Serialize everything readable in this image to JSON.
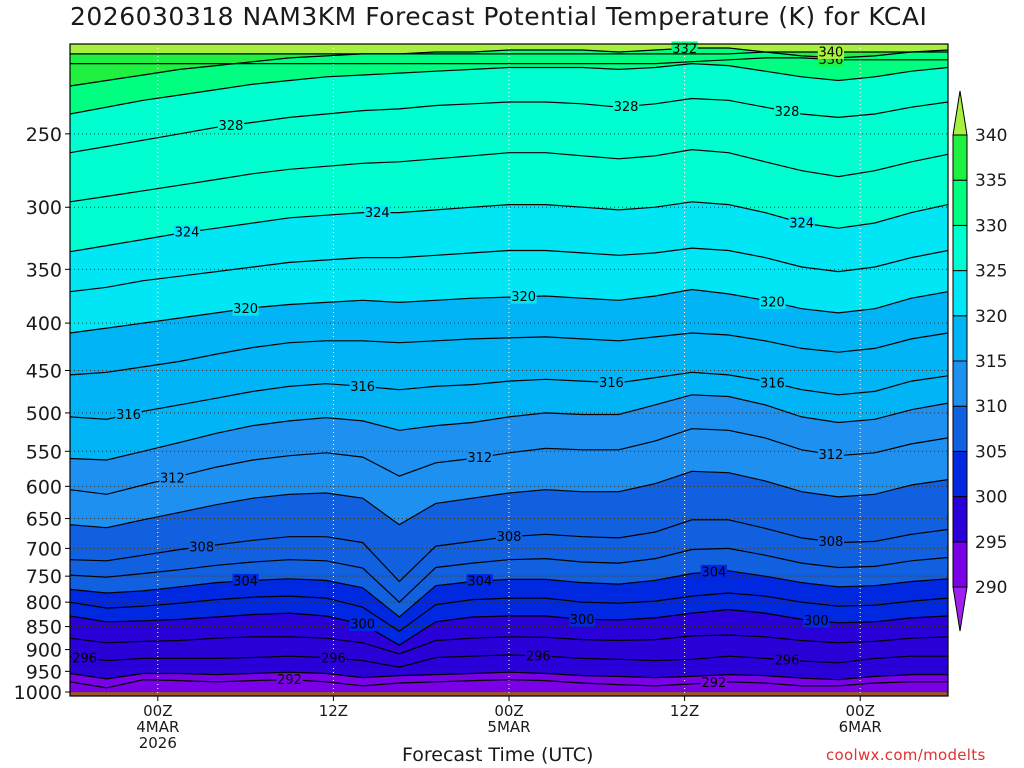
{
  "title": "2026030318 NAM3KM Forecast Potential Temperature (K) for KCAI",
  "credit": "coolwx.com/modelts",
  "chart_data": {
    "type": "heatmap",
    "title": "2026030318 NAM3KM Forecast Potential Temperature (K) for KCAI",
    "xlabel": "Forecast Time (UTC)",
    "ylabel": "",
    "x_ticks": [
      {
        "hour": 6,
        "lines": [
          "00Z",
          "4MAR",
          "2026"
        ]
      },
      {
        "hour": 18,
        "lines": [
          "12Z"
        ]
      },
      {
        "hour": 30,
        "lines": [
          "00Z",
          "5MAR"
        ]
      },
      {
        "hour": 42,
        "lines": [
          "12Z"
        ]
      },
      {
        "hour": 54,
        "lines": [
          "00Z",
          "6MAR"
        ]
      }
    ],
    "xlim_hours": [
      0,
      60
    ],
    "y_ticks": [
      250,
      300,
      350,
      400,
      450,
      500,
      550,
      600,
      650,
      700,
      750,
      800,
      850,
      900,
      950,
      1000
    ],
    "ylim": [
      1010,
      200
    ],
    "y_scale": "log",
    "grid": true,
    "colorbar": {
      "levels": [
        290,
        295,
        300,
        305,
        310,
        315,
        320,
        325,
        330,
        335,
        340
      ],
      "labels": [
        "290",
        "295",
        "300",
        "305",
        "310",
        "315",
        "320",
        "325",
        "330",
        "335",
        "340"
      ],
      "colors": [
        "#a020f0",
        "#7a00e6",
        "#2a00d8",
        "#0028e0",
        "#1060e0",
        "#1e90f0",
        "#00b4f5",
        "#00e6f5",
        "#00ffd0",
        "#00ff80",
        "#20f040",
        "#a8f040"
      ]
    },
    "contour_levels": [
      {
        "value": 292,
        "pressures": [
          975,
          990,
          970,
          972,
          975,
          972,
          970,
          975,
          985,
          978,
          975,
          972,
          970,
          972,
          978,
          982,
          985,
          980,
          975,
          978,
          985,
          985,
          978,
          975,
          975
        ],
        "labels": [
          {
            "hour": 15,
            "text": "292"
          },
          {
            "hour": 44,
            "text": "292"
          }
        ]
      },
      {
        "value": 294,
        "pressures": [
          955,
          968,
          955,
          955,
          958,
          955,
          952,
          955,
          965,
          960,
          958,
          955,
          952,
          955,
          960,
          962,
          965,
          962,
          958,
          960,
          966,
          970,
          962,
          958,
          958
        ],
        "labels": []
      },
      {
        "value": 296,
        "pressures": [
          915,
          925,
          920,
          920,
          920,
          918,
          915,
          918,
          925,
          940,
          918,
          915,
          912,
          915,
          920,
          922,
          925,
          922,
          915,
          920,
          926,
          930,
          920,
          915,
          915
        ],
        "labels": [
          {
            "hour": 1,
            "text": "296"
          },
          {
            "hour": 18,
            "text": "296"
          },
          {
            "hour": 32,
            "text": "296"
          },
          {
            "hour": 49,
            "text": "296"
          }
        ]
      },
      {
        "value": 298,
        "pressures": [
          875,
          885,
          882,
          880,
          875,
          872,
          872,
          875,
          885,
          910,
          880,
          875,
          872,
          873,
          878,
          880,
          878,
          870,
          868,
          872,
          880,
          885,
          882,
          875,
          872
        ],
        "labels": []
      },
      {
        "value": 300,
        "pressures": [
          828,
          840,
          838,
          835,
          830,
          825,
          822,
          828,
          845,
          890,
          840,
          830,
          828,
          828,
          835,
          836,
          832,
          822,
          815,
          822,
          835,
          842,
          840,
          832,
          828
        ],
        "labels": [
          {
            "hour": 20,
            "text": "300"
          },
          {
            "hour": 35,
            "text": "300"
          },
          {
            "hour": 51,
            "text": "300"
          }
        ]
      },
      {
        "value": 302,
        "pressures": [
          800,
          812,
          808,
          802,
          795,
          790,
          788,
          792,
          810,
          860,
          805,
          795,
          792,
          792,
          800,
          802,
          798,
          788,
          782,
          788,
          800,
          808,
          806,
          798,
          792
        ],
        "labels": []
      },
      {
        "value": 304,
        "pressures": [
          775,
          782,
          778,
          770,
          762,
          758,
          755,
          758,
          772,
          830,
          768,
          760,
          756,
          756,
          762,
          765,
          758,
          745,
          740,
          750,
          762,
          770,
          768,
          760,
          755
        ],
        "labels": [
          {
            "hour": 12,
            "text": "304"
          },
          {
            "hour": 28,
            "text": "304"
          },
          {
            "hour": 44,
            "text": "304"
          }
        ]
      },
      {
        "value": 306,
        "pressures": [
          748,
          752,
          745,
          738,
          730,
          724,
          720,
          722,
          735,
          800,
          734,
          726,
          720,
          718,
          724,
          726,
          718,
          702,
          700,
          712,
          726,
          734,
          732,
          722,
          716
        ],
        "labels": []
      },
      {
        "value": 308,
        "pressures": [
          720,
          722,
          712,
          702,
          694,
          686,
          680,
          680,
          690,
          760,
          696,
          688,
          680,
          676,
          680,
          682,
          672,
          652,
          652,
          666,
          682,
          690,
          688,
          676,
          668
        ],
        "labels": [
          {
            "hour": 9,
            "text": "308"
          },
          {
            "hour": 30,
            "text": "308"
          },
          {
            "hour": 52,
            "text": "308"
          }
        ]
      },
      {
        "value": 310,
        "pressures": [
          660,
          665,
          652,
          640,
          628,
          618,
          612,
          610,
          618,
          660,
          626,
          618,
          610,
          605,
          608,
          608,
          596,
          578,
          580,
          592,
          608,
          616,
          612,
          598,
          590
        ],
        "labels": []
      },
      {
        "value": 312,
        "pressures": [
          605,
          612,
          598,
          585,
          572,
          562,
          556,
          552,
          558,
          585,
          566,
          560,
          552,
          546,
          548,
          548,
          536,
          520,
          522,
          532,
          548,
          556,
          552,
          540,
          532
        ],
        "labels": [
          {
            "hour": 7,
            "text": "312"
          },
          {
            "hour": 28,
            "text": "312"
          },
          {
            "hour": 52,
            "text": "312"
          }
        ]
      },
      {
        "value": 314,
        "pressures": [
          560,
          562,
          550,
          538,
          526,
          516,
          510,
          506,
          510,
          522,
          516,
          512,
          505,
          500,
          502,
          502,
          490,
          478,
          480,
          490,
          505,
          512,
          508,
          496,
          488
        ],
        "labels": []
      },
      {
        "value": 316,
        "pressures": [
          505,
          508,
          498,
          490,
          482,
          474,
          468,
          465,
          468,
          472,
          468,
          466,
          462,
          460,
          462,
          464,
          458,
          452,
          455,
          462,
          472,
          478,
          474,
          462,
          456
        ],
        "labels": [
          {
            "hour": 4,
            "text": "316"
          },
          {
            "hour": 20,
            "text": "316"
          },
          {
            "hour": 37,
            "text": "316"
          },
          {
            "hour": 48,
            "text": "316"
          }
        ]
      },
      {
        "value": 318,
        "pressures": [
          455,
          452,
          446,
          440,
          432,
          425,
          420,
          418,
          418,
          420,
          418,
          416,
          415,
          414,
          416,
          418,
          414,
          410,
          412,
          418,
          426,
          430,
          426,
          416,
          410
        ],
        "labels": []
      },
      {
        "value": 320,
        "pressures": [
          410,
          405,
          400,
          395,
          390,
          385,
          382,
          380,
          378,
          380,
          378,
          376,
          375,
          374,
          376,
          378,
          374,
          368,
          372,
          378,
          386,
          390,
          386,
          376,
          370
        ],
        "labels": [
          {
            "hour": 12,
            "text": "320"
          },
          {
            "hour": 31,
            "text": "320"
          },
          {
            "hour": 48,
            "text": "320"
          }
        ]
      },
      {
        "value": 322,
        "pressures": [
          370,
          366,
          360,
          356,
          352,
          348,
          344,
          342,
          340,
          340,
          338,
          336,
          334,
          334,
          336,
          338,
          336,
          332,
          334,
          340,
          348,
          352,
          348,
          340,
          334
        ],
        "labels": []
      },
      {
        "value": 324,
        "pressures": [
          335,
          330,
          325,
          320,
          316,
          312,
          308,
          306,
          304,
          304,
          302,
          300,
          298,
          298,
          300,
          302,
          300,
          296,
          298,
          304,
          312,
          316,
          312,
          304,
          298
        ],
        "labels": [
          {
            "hour": 8,
            "text": "324"
          },
          {
            "hour": 21,
            "text": "324"
          },
          {
            "hour": 50,
            "text": "324"
          }
        ]
      },
      {
        "value": 326,
        "pressures": [
          296,
          292,
          288,
          284,
          280,
          276,
          273,
          271,
          269,
          268,
          266,
          264,
          262,
          262,
          264,
          266,
          264,
          260,
          262,
          268,
          274,
          278,
          274,
          268,
          263
        ],
        "labels": []
      },
      {
        "value": 328,
        "pressures": [
          262,
          258,
          254,
          250,
          246,
          243,
          240,
          238,
          236,
          235,
          233,
          232,
          231,
          231,
          232,
          234,
          232,
          229,
          230,
          234,
          238,
          240,
          238,
          234,
          231
        ],
        "labels": [
          {
            "hour": 11,
            "text": "328"
          },
          {
            "hour": 38,
            "text": "328"
          },
          {
            "hour": 49,
            "text": "328"
          }
        ]
      },
      {
        "value": 330,
        "pressures": [
          238,
          234,
          230,
          227,
          224,
          221,
          219,
          217,
          216,
          215,
          214,
          213,
          212,
          212,
          212,
          213,
          212,
          210,
          211,
          214,
          217,
          219,
          217,
          214,
          212
        ],
        "labels": []
      },
      {
        "value": 332,
        "pressures": [
          222,
          219,
          216,
          213,
          211,
          209,
          207,
          206,
          205,
          205,
          204,
          204,
          203,
          203,
          203,
          204,
          203,
          202,
          202,
          204,
          206,
          207,
          206,
          204,
          203
        ],
        "labels": [
          {
            "hour": 42,
            "text": "332"
          }
        ]
      },
      {
        "value": 336,
        "pressures": [
          210,
          210,
          210,
          210,
          210,
          210,
          210,
          210,
          210,
          210,
          210,
          210,
          210,
          210,
          210,
          210,
          210,
          209,
          208,
          207,
          207,
          208,
          208,
          208,
          208
        ],
        "labels": [
          {
            "hour": 52,
            "text": "336"
          }
        ]
      },
      {
        "value": 340,
        "pressures": [
          205,
          205,
          205,
          205,
          205,
          205,
          205,
          205,
          205,
          205,
          205,
          205,
          205,
          205,
          205,
          205,
          205,
          205,
          205,
          204,
          204,
          204,
          204,
          204,
          204
        ],
        "labels": [
          {
            "hour": 52,
            "text": "340"
          }
        ]
      }
    ],
    "surface": {
      "color": "#a0522d"
    }
  }
}
